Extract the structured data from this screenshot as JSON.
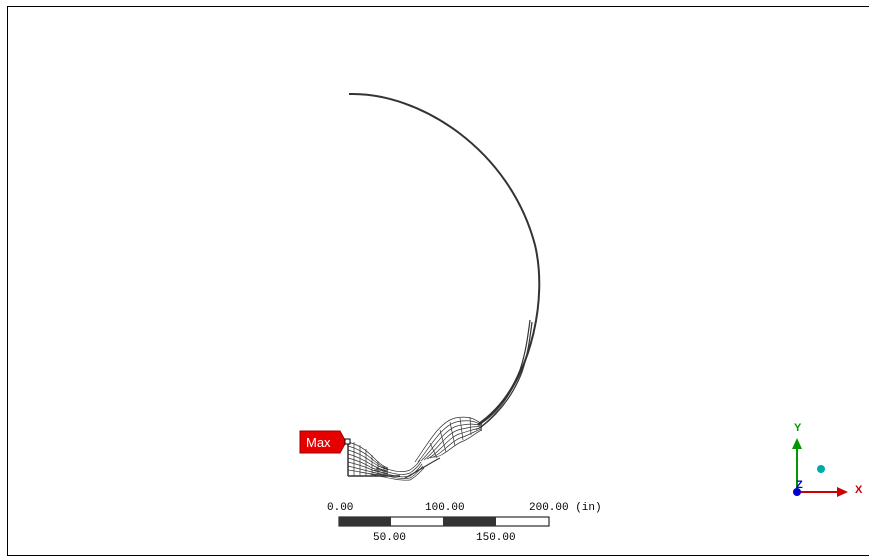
{
  "probe": {
    "label": "Max",
    "color": "#e60000"
  },
  "scale_bar": {
    "top_labels": [
      "0.00",
      "100.00",
      "200.00 (in)"
    ],
    "bottom_labels": [
      "50.00",
      "150.00"
    ]
  },
  "triad": {
    "x_label": "X",
    "y_label": "Y",
    "z_label": "Z",
    "x_color": "#cc0000",
    "y_color": "#009900",
    "z_color": "#0000cc",
    "iso_color": "#00aaaa"
  },
  "colors": {
    "geometry": "#333333",
    "background": "#ffffff"
  }
}
